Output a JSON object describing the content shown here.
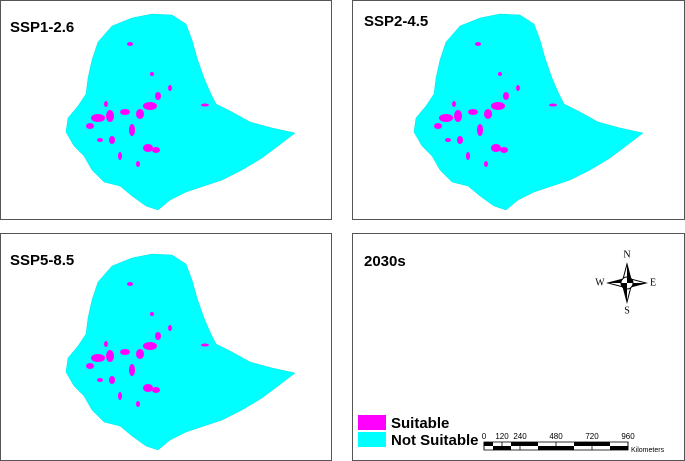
{
  "panels": [
    {
      "label": "SSP1-2.6"
    },
    {
      "label": "SSP2-4.5"
    },
    {
      "label": "SSP5-8.5"
    }
  ],
  "info_panel": {
    "label": "2030s",
    "compass": {
      "n": "N",
      "e": "E",
      "s": "S",
      "w": "W"
    },
    "legend": [
      {
        "label": "Suitable",
        "color": "#ff00ff"
      },
      {
        "label": "Not Suitable",
        "color": "#00ffff"
      }
    ],
    "scale_bar": {
      "ticks": [
        0,
        120,
        240,
        480,
        720,
        960
      ],
      "unit": "Kilometers"
    }
  }
}
